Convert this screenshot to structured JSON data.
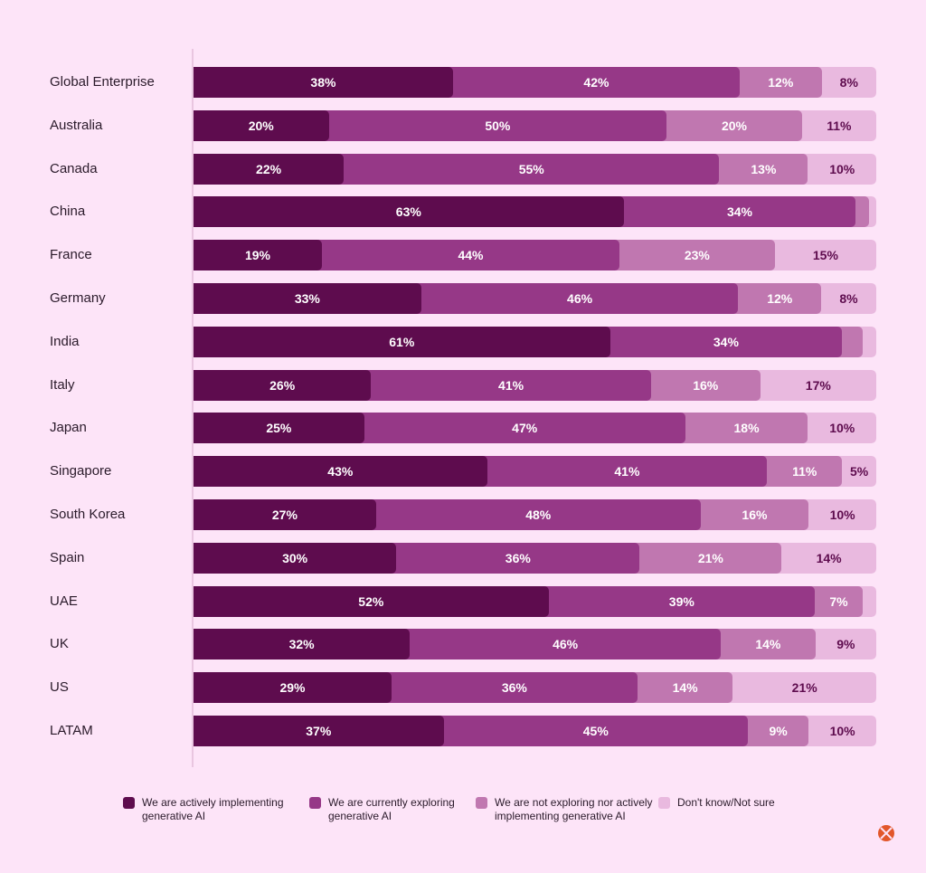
{
  "chart_data": {
    "type": "bar",
    "orientation": "horizontal",
    "stacked": true,
    "categories": [
      "Global Enterprise",
      "Australia",
      "Canada",
      "China",
      "France",
      "Germany",
      "India",
      "Italy",
      "Japan",
      "Singapore",
      "South Korea",
      "Spain",
      "UAE",
      "UK",
      "US",
      "LATAM"
    ],
    "series": [
      {
        "name": "We are actively implementing generative AI",
        "color": "#5e0c4e",
        "values": [
          38,
          20,
          22,
          63,
          19,
          33,
          61,
          26,
          25,
          43,
          27,
          30,
          52,
          32,
          29,
          37
        ]
      },
      {
        "name": "We are currently exploring generative AI",
        "color": "#963887",
        "values": [
          42,
          50,
          55,
          34,
          44,
          46,
          34,
          41,
          47,
          41,
          48,
          36,
          39,
          46,
          36,
          45
        ]
      },
      {
        "name": "We are not exploring nor actively implementing generative AI",
        "color": "#c077b0",
        "values": [
          12,
          20,
          13,
          2,
          23,
          12,
          3,
          16,
          18,
          11,
          16,
          21,
          7,
          14,
          14,
          9
        ],
        "labeled": [
          true,
          true,
          true,
          false,
          true,
          true,
          false,
          true,
          true,
          true,
          true,
          true,
          true,
          true,
          true,
          true
        ]
      },
      {
        "name": "Don't know/Not sure",
        "color": "#e9b9df",
        "values": [
          8,
          11,
          10,
          1,
          15,
          8,
          2,
          17,
          10,
          5,
          10,
          14,
          2,
          9,
          21,
          10
        ],
        "labeled": [
          true,
          true,
          true,
          false,
          true,
          true,
          false,
          true,
          true,
          true,
          true,
          true,
          false,
          true,
          true,
          true
        ]
      }
    ],
    "label_suffix": "%",
    "legend_position": "bottom",
    "grid": false
  },
  "label_colors": {
    "dark": "#ffffff",
    "light": "#5e0c4e"
  }
}
